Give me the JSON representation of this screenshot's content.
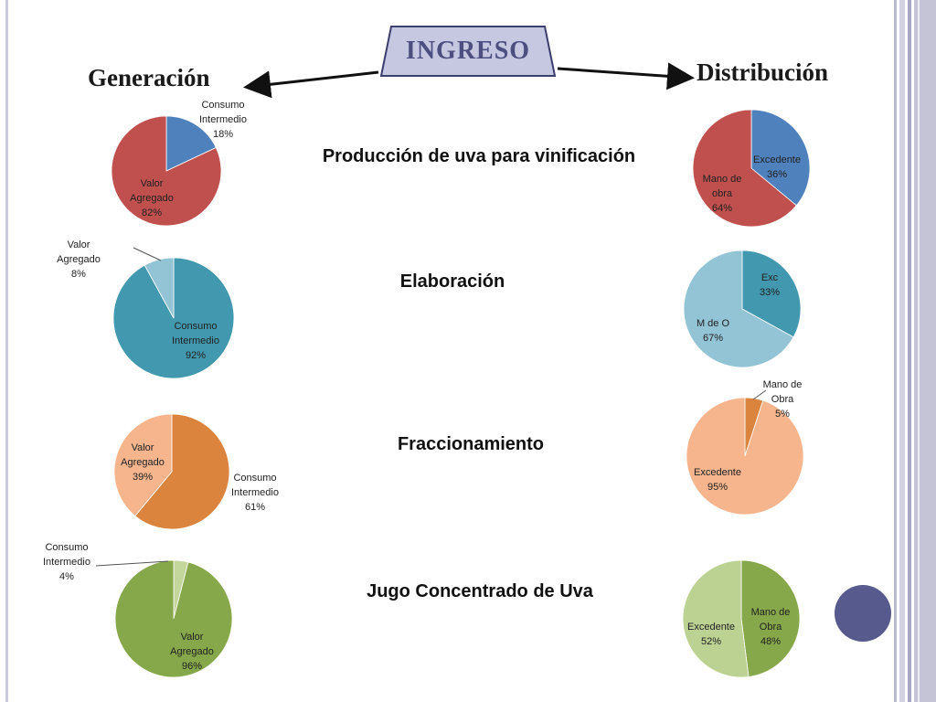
{
  "header": {
    "center_title": "INGRESO",
    "left_title": "Generación",
    "right_title": "Distribución"
  },
  "rows": [
    {
      "label": "Producción de uva para vinificación"
    },
    {
      "label": "Elaboración"
    },
    {
      "label": "Fraccionamiento"
    },
    {
      "label": "Jugo Concentrado de Uva"
    }
  ],
  "colors": {
    "frame": "#c4c4d6",
    "ingreso_fill": "#c6c7e0",
    "ingreso_stroke": "#3c3e6e",
    "ingreso_text": "#4d4f80",
    "deco_circle": "#565a8c"
  },
  "chart_data": [
    {
      "type": "pie",
      "group": "Generación",
      "row": "Producción de uva para vinificación",
      "slices": [
        {
          "label": "Consumo Intermedio",
          "value": 18,
          "display": "18%",
          "color": "#4f81bd"
        },
        {
          "label": "Valor Agregado",
          "value": 82,
          "display": "82%",
          "color": "#c0504d"
        }
      ]
    },
    {
      "type": "pie",
      "group": "Distribución",
      "row": "Producción de uva para vinificación",
      "slices": [
        {
          "label": "Excedente",
          "value": 36,
          "display": "36%",
          "color": "#4f81bd"
        },
        {
          "label": "Mano de obra",
          "value": 64,
          "display": "64%",
          "color": "#c0504d"
        }
      ]
    },
    {
      "type": "pie",
      "group": "Generación",
      "row": "Elaboración",
      "slices": [
        {
          "label": "Consumo Intermedio",
          "value": 92,
          "display": "92%",
          "color": "#4198af"
        },
        {
          "label": "Valor Agregado",
          "value": 8,
          "display": "8%",
          "color": "#93c4d6"
        }
      ]
    },
    {
      "type": "pie",
      "group": "Distribución",
      "row": "Elaboración",
      "slices": [
        {
          "label": "Exc",
          "value": 33,
          "display": "33%",
          "color": "#4198af"
        },
        {
          "label": "M de O",
          "value": 67,
          "display": "67%",
          "color": "#93c4d6"
        }
      ]
    },
    {
      "type": "pie",
      "group": "Generación",
      "row": "Fraccionamiento",
      "slices": [
        {
          "label": "Consumo Intermedio",
          "value": 61,
          "display": "61%",
          "color": "#db843d"
        },
        {
          "label": "Valor Agregado",
          "value": 39,
          "display": "39%",
          "color": "#f7b58e"
        }
      ]
    },
    {
      "type": "pie",
      "group": "Distribución",
      "row": "Fraccionamiento",
      "slices": [
        {
          "label": "Mano de Obra",
          "value": 5,
          "display": "5%",
          "color": "#db843d"
        },
        {
          "label": "Excedente",
          "value": 95,
          "display": "95%",
          "color": "#f7b58e"
        }
      ]
    },
    {
      "type": "pie",
      "group": "Generación",
      "row": "Jugo Concentrado de Uva",
      "slices": [
        {
          "label": "Valor Agregado",
          "value": 96,
          "display": "96%",
          "color": "#86a84a"
        },
        {
          "label": "Consumo Intermedio",
          "value": 4,
          "display": "4%",
          "color": "#c3d69b"
        }
      ]
    },
    {
      "type": "pie",
      "group": "Distribución",
      "row": "Jugo Concentrado de Uva",
      "slices": [
        {
          "label": "Mano de Obra",
          "value": 48,
          "display": "48%",
          "color": "#86a84a"
        },
        {
          "label": "Excedente",
          "value": 52,
          "display": "52%",
          "color": "#bcd293"
        }
      ]
    }
  ]
}
